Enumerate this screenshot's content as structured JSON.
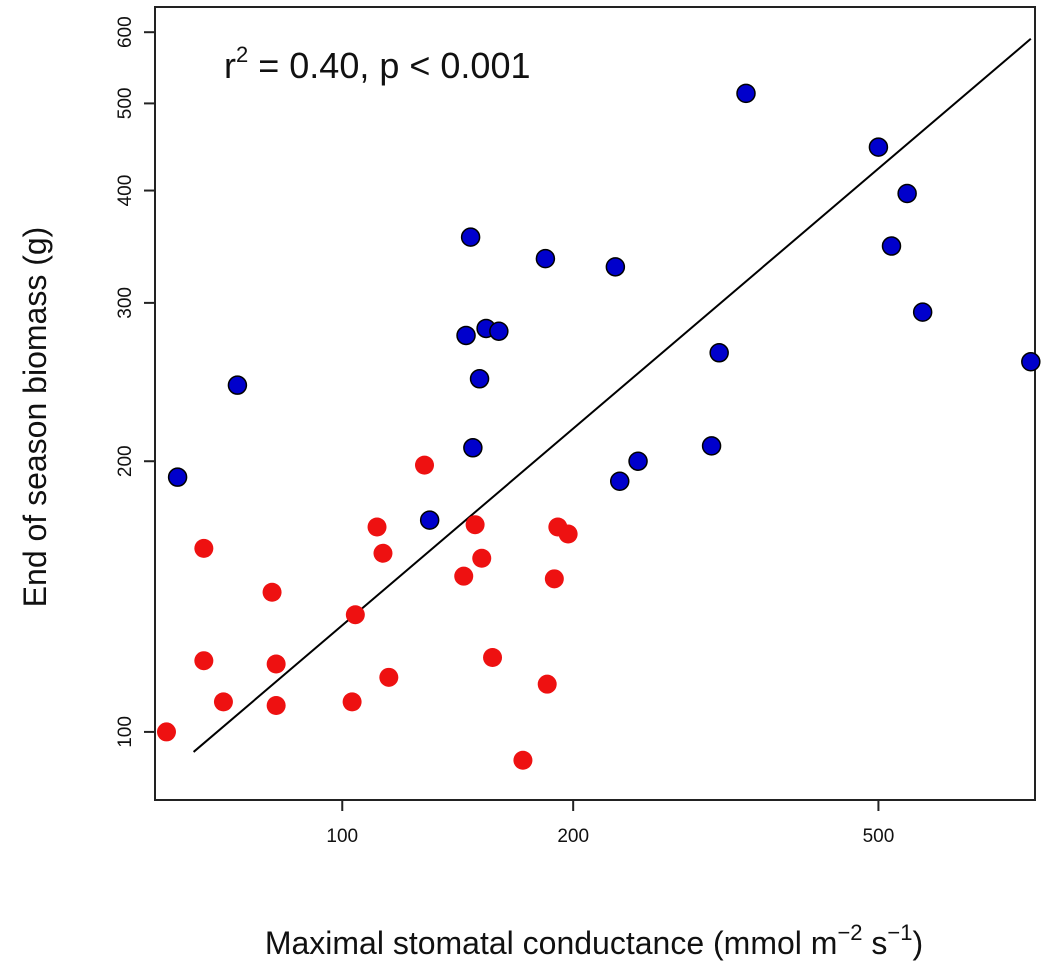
{
  "chart_data": {
    "type": "scatter",
    "title": "",
    "annotation": {
      "base": "r",
      "sup": "2",
      "rest": " = 0.40, p < 0.001"
    },
    "xlabel": {
      "text": "Maximal stomatal conductance (mmol m",
      "sup1": "−2",
      "mid": " s",
      "sup2": "−1",
      "end": ")"
    },
    "ylabel": "End of season biomass (g)",
    "xscale": "log",
    "yscale": "log",
    "xlim": [
      57,
      800
    ],
    "ylim": [
      84,
      640
    ],
    "xticks": [
      100,
      200,
      500
    ],
    "xtick_labels": [
      "100",
      "200",
      "500"
    ],
    "yticks": [
      100,
      200,
      300,
      400,
      500,
      600
    ],
    "ytick_labels": [
      "100",
      "200",
      "300",
      "400",
      "500",
      "600"
    ],
    "grid": false,
    "legend": "none",
    "colors": {
      "blue": "#0000cc",
      "red": "#ee1111",
      "line": "#000000",
      "axis": "#222222"
    },
    "series": [
      {
        "color": "#0000cc",
        "outlined": true,
        "points": [
          {
            "x": 61,
            "y": 192
          },
          {
            "x": 73,
            "y": 243
          },
          {
            "x": 130,
            "y": 172
          },
          {
            "x": 145,
            "y": 276
          },
          {
            "x": 147,
            "y": 355
          },
          {
            "x": 148,
            "y": 207
          },
          {
            "x": 151,
            "y": 247
          },
          {
            "x": 154,
            "y": 281
          },
          {
            "x": 160,
            "y": 279
          },
          {
            "x": 184,
            "y": 336
          },
          {
            "x": 227,
            "y": 329
          },
          {
            "x": 230,
            "y": 190
          },
          {
            "x": 243,
            "y": 200
          },
          {
            "x": 303,
            "y": 208
          },
          {
            "x": 310,
            "y": 264
          },
          {
            "x": 336,
            "y": 513
          },
          {
            "x": 500,
            "y": 447
          },
          {
            "x": 520,
            "y": 347
          },
          {
            "x": 545,
            "y": 397
          },
          {
            "x": 571,
            "y": 293
          },
          {
            "x": 790,
            "y": 258
          }
        ]
      },
      {
        "color": "#ee1111",
        "outlined": false,
        "points": [
          {
            "x": 59,
            "y": 100
          },
          {
            "x": 66,
            "y": 120
          },
          {
            "x": 66,
            "y": 160
          },
          {
            "x": 70,
            "y": 108
          },
          {
            "x": 81,
            "y": 143
          },
          {
            "x": 82,
            "y": 119
          },
          {
            "x": 82,
            "y": 107
          },
          {
            "x": 103,
            "y": 108
          },
          {
            "x": 104,
            "y": 135
          },
          {
            "x": 111,
            "y": 169
          },
          {
            "x": 113,
            "y": 158
          },
          {
            "x": 115,
            "y": 115
          },
          {
            "x": 128,
            "y": 198
          },
          {
            "x": 144,
            "y": 149
          },
          {
            "x": 149,
            "y": 170
          },
          {
            "x": 152,
            "y": 156
          },
          {
            "x": 157,
            "y": 121
          },
          {
            "x": 172,
            "y": 93
          },
          {
            "x": 185,
            "y": 113
          },
          {
            "x": 189,
            "y": 148
          },
          {
            "x": 191,
            "y": 169
          },
          {
            "x": 197,
            "y": 166
          }
        ]
      }
    ],
    "fit_line": {
      "x": [
        64,
        790
      ],
      "y": [
        95,
        590
      ]
    }
  }
}
